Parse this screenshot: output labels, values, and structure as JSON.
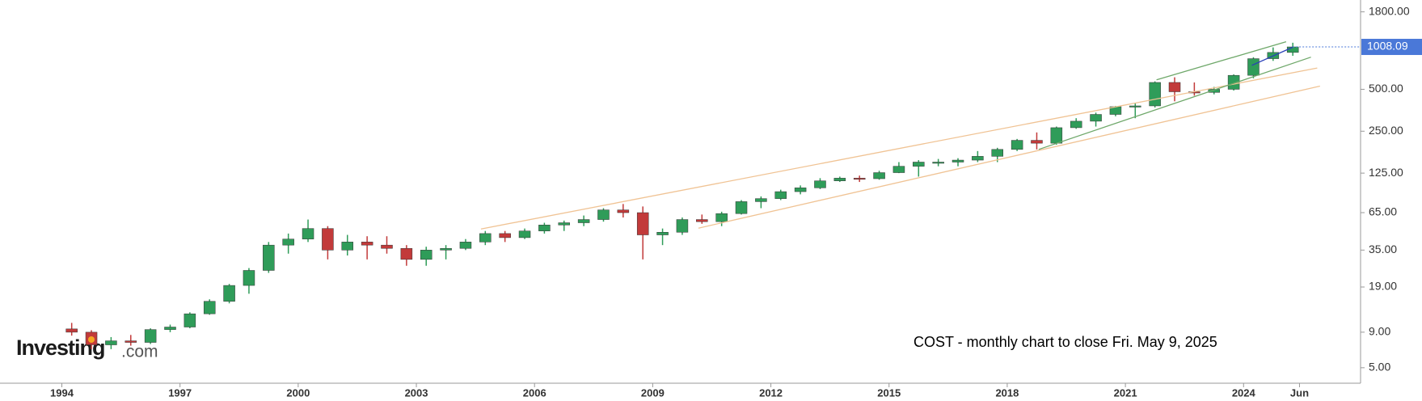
{
  "chart_data": {
    "type": "candlestick",
    "annotation": "COST - monthly chart to close Fri. May 9, 2025",
    "watermark": {
      "name": "Investing",
      "suffix": ".com"
    },
    "log_scale": true,
    "up_color": "#2f9c59",
    "down_color": "#c23a3a",
    "x": [
      1994.25,
      1994.75,
      1995.25,
      1995.75,
      1996.25,
      1996.75,
      1997.25,
      1997.75,
      1998.25,
      1998.75,
      1999.25,
      1999.75,
      2000.25,
      2000.75,
      2001.25,
      2001.75,
      2002.25,
      2002.75,
      2003.25,
      2003.75,
      2004.25,
      2004.75,
      2005.25,
      2005.75,
      2006.25,
      2006.75,
      2007.25,
      2007.75,
      2008.25,
      2008.75,
      2009.25,
      2009.75,
      2010.25,
      2010.75,
      2011.25,
      2011.75,
      2012.25,
      2012.75,
      2013.25,
      2013.75,
      2014.25,
      2014.75,
      2015.25,
      2015.75,
      2016.25,
      2016.75,
      2017.25,
      2017.75,
      2018.25,
      2018.75,
      2019.25,
      2019.75,
      2020.25,
      2020.75,
      2021.25,
      2021.75,
      2022.25,
      2022.75,
      2023.25,
      2023.75,
      2024.25,
      2024.75,
      2025.25
    ],
    "open": [
      9.5,
      9.0,
      7.3,
      7.8,
      7.6,
      9.4,
      9.8,
      12.2,
      15,
      19.5,
      25,
      38,
      42,
      50,
      35,
      40,
      38,
      36,
      30,
      35,
      36,
      40,
      46,
      43,
      48,
      53,
      55,
      58,
      68,
      65,
      45,
      47,
      58,
      56,
      64,
      78,
      82,
      92,
      98,
      110,
      115,
      114,
      126,
      140,
      150,
      150,
      155,
      165,
      185,
      215,
      205,
      265,
      295,
      330,
      375,
      380,
      560,
      480,
      475,
      500,
      630,
      830,
      920
    ],
    "high": [
      10.5,
      9.3,
      8.3,
      8.6,
      9.6,
      10.2,
      12.5,
      15.5,
      20,
      26,
      40,
      46,
      58,
      52,
      45,
      44,
      44,
      38,
      37,
      38,
      42,
      48,
      48,
      50,
      55,
      57,
      62,
      70,
      75,
      72,
      50,
      60,
      63,
      66,
      80,
      85,
      95,
      102,
      115,
      118,
      120,
      130,
      150,
      155,
      158,
      160,
      180,
      190,
      220,
      245,
      270,
      310,
      340,
      380,
      400,
      570,
      610,
      560,
      520,
      640,
      850,
      1000,
      1080
    ],
    "low": [
      8.5,
      6.8,
      6.8,
      7.2,
      7.4,
      9.0,
      9.6,
      12.0,
      14.5,
      17,
      24,
      33,
      40,
      30,
      32,
      30,
      33,
      27,
      27,
      30,
      35,
      38,
      40,
      42,
      46,
      48,
      52,
      56,
      60,
      30,
      38,
      45,
      54,
      52,
      63,
      70,
      80,
      88,
      96,
      108,
      108,
      112,
      125,
      118,
      140,
      140,
      150,
      150,
      180,
      185,
      200,
      260,
      270,
      320,
      310,
      370,
      410,
      450,
      460,
      490,
      600,
      800,
      870
    ],
    "close": [
      9.0,
      7.3,
      7.8,
      7.6,
      9.4,
      9.8,
      12.2,
      15,
      19.5,
      25,
      38,
      42,
      50,
      35,
      40,
      38,
      36,
      30,
      35,
      36,
      40,
      46,
      43,
      48,
      53,
      55,
      58,
      68,
      65,
      45,
      47,
      58,
      56,
      64,
      78,
      82,
      92,
      98,
      110,
      115,
      114,
      126,
      140,
      150,
      150,
      155,
      165,
      185,
      215,
      205,
      265,
      295,
      330,
      375,
      380,
      560,
      480,
      475,
      500,
      630,
      830,
      920,
      1008.09
    ],
    "last_price": 1008.09,
    "xlim": [
      1992.43,
      2026.97
    ],
    "xticks": [
      1994,
      1997,
      2000,
      2003,
      2006,
      2009,
      2012,
      2015,
      2018,
      2021,
      2024,
      {
        "value": 2025.42,
        "label": "Jun"
      }
    ],
    "ylim": [
      3.87,
      2190
    ],
    "yticks": [
      {
        "value": 5,
        "label": "5.00"
      },
      {
        "value": 9,
        "label": "9.00"
      },
      {
        "value": 19,
        "label": "19.00"
      },
      {
        "value": 35,
        "label": "35.00"
      },
      {
        "value": 65,
        "label": "65.00"
      },
      {
        "value": 125,
        "label": "125.00"
      },
      {
        "value": 250,
        "label": "250.00"
      },
      {
        "value": 500,
        "label": "500.00"
      },
      {
        "value": 1800,
        "label": "1800.00"
      }
    ],
    "trendlines": [
      {
        "color": "#f0c394",
        "x": [
          2004.64,
          2025.87
        ],
        "y": [
          49.6,
          711
        ]
      },
      {
        "color": "#f0c394",
        "x": [
          2010.16,
          2025.94
        ],
        "y": [
          50.3,
          527
        ]
      },
      {
        "color": "#6fa86a",
        "x": [
          2018.8,
          2025.71
        ],
        "y": [
          185,
          851
        ]
      },
      {
        "color": "#6fa86a",
        "x": [
          2021.79,
          2025.08
        ],
        "y": [
          585,
          1098
        ]
      },
      {
        "color": "#2a3fb8",
        "x": [
          2024.21,
          2025.25
        ],
        "y": [
          743,
          1003
        ]
      }
    ]
  }
}
